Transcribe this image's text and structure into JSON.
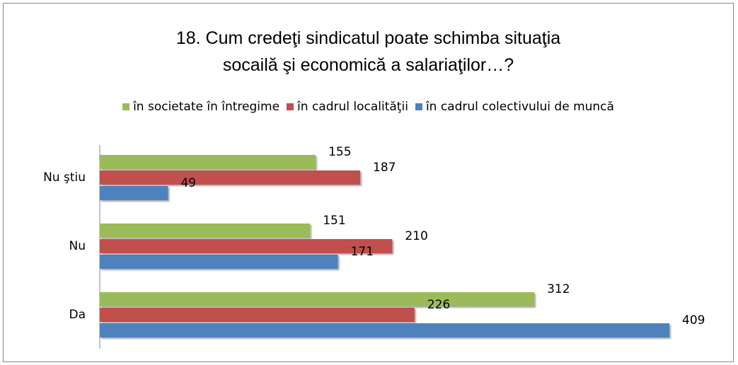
{
  "chart_data": {
    "type": "bar",
    "orientation": "horizontal",
    "title": "18. Cum credeţi sindicatul poate schimba situaţia\nsocailă şi economică a salariaţilor…?",
    "categories": [
      "Nu ştiu",
      "Nu",
      "Da"
    ],
    "series": [
      {
        "name": "în societate în întregime",
        "color": "#9bbb59",
        "values": [
          155,
          151,
          312
        ]
      },
      {
        "name": "în cadrul localităţii",
        "color": "#c0504d",
        "values": [
          187,
          210,
          226
        ]
      },
      {
        "name": "în cadrul colectivului de muncă",
        "color": "#4f81bd",
        "values": [
          49,
          171,
          409
        ]
      }
    ],
    "legend": "top"
  }
}
